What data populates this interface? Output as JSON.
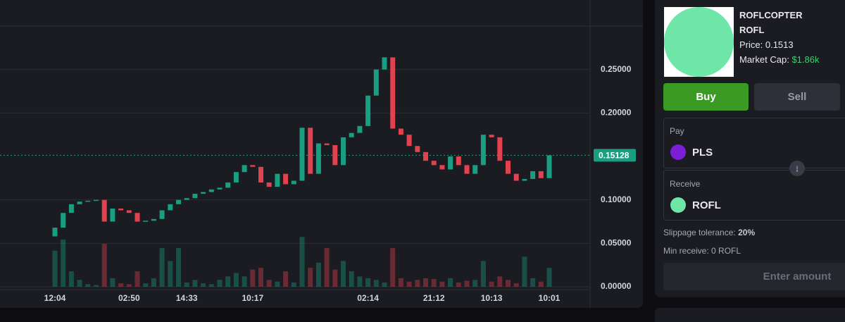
{
  "token": {
    "name": "ROFLCOPTER",
    "symbol": "ROFL",
    "price_label": "Price:",
    "price": "0.1513",
    "market_cap_label": "Market Cap:",
    "market_cap": "$1.86k"
  },
  "actions": {
    "buy": "Buy",
    "sell": "Sell"
  },
  "pay": {
    "label": "Pay",
    "token": "PLS"
  },
  "receive": {
    "label": "Receive",
    "token": "ROFL"
  },
  "slippage": {
    "label": "Slippage tolerance:",
    "value": "20%"
  },
  "min_receive": "Min receive: 0 ROFL",
  "submit": "Enter amount",
  "chart_data": {
    "type": "candlestick",
    "categories": [
      "12:04",
      null,
      null,
      null,
      null,
      null,
      null,
      null,
      null,
      "02:50",
      null,
      null,
      null,
      null,
      null,
      null,
      "14:33",
      null,
      null,
      null,
      null,
      null,
      null,
      null,
      "10:17",
      null,
      null,
      null,
      null,
      null,
      null,
      null,
      null,
      null,
      null,
      null,
      null,
      null,
      "02:14",
      null,
      null,
      null,
      null,
      null,
      null,
      null,
      "21:12",
      null,
      null,
      null,
      null,
      null,
      null,
      "10:13",
      null,
      null,
      null,
      null,
      null,
      null,
      "10:01"
    ],
    "open": [
      0.058,
      0.068,
      0.085,
      0.095,
      0.098,
      0.099,
      0.1,
      0.075,
      0.09,
      0.088,
      0.085,
      0.075,
      0.076,
      0.078,
      0.088,
      0.095,
      0.1,
      0.102,
      0.107,
      0.109,
      0.112,
      0.114,
      0.12,
      0.132,
      0.14,
      0.138,
      0.12,
      0.115,
      0.13,
      0.118,
      0.122,
      0.183,
      0.13,
      0.165,
      0.163,
      0.14,
      0.172,
      0.177,
      0.185,
      0.22,
      0.25,
      0.264,
      0.182,
      0.175,
      0.162,
      0.155,
      0.145,
      0.14,
      0.135,
      0.15,
      0.14,
      0.13,
      0.14,
      0.175,
      0.172,
      0.145,
      0.13,
      0.122,
      0.124,
      0.133,
      0.125
    ],
    "close": [
      0.068,
      0.085,
      0.095,
      0.098,
      0.099,
      0.1,
      0.075,
      0.09,
      0.088,
      0.085,
      0.075,
      0.076,
      0.078,
      0.088,
      0.095,
      0.1,
      0.102,
      0.107,
      0.109,
      0.112,
      0.114,
      0.12,
      0.132,
      0.14,
      0.138,
      0.12,
      0.115,
      0.13,
      0.118,
      0.122,
      0.183,
      0.13,
      0.165,
      0.163,
      0.14,
      0.172,
      0.177,
      0.185,
      0.22,
      0.25,
      0.264,
      0.182,
      0.175,
      0.162,
      0.155,
      0.145,
      0.14,
      0.135,
      0.15,
      0.14,
      0.13,
      0.14,
      0.175,
      0.172,
      0.145,
      0.13,
      0.122,
      0.124,
      0.133,
      0.125,
      0.15128
    ],
    "volume": [
      42,
      55,
      18,
      8,
      3,
      2,
      50,
      10,
      4,
      3,
      18,
      4,
      10,
      45,
      30,
      45,
      5,
      8,
      4,
      3,
      8,
      12,
      16,
      12,
      20,
      22,
      8,
      6,
      18,
      5,
      58,
      22,
      28,
      45,
      20,
      30,
      18,
      12,
      10,
      8,
      5,
      45,
      10,
      6,
      8,
      10,
      9,
      6,
      10,
      5,
      7,
      8,
      30,
      6,
      12,
      8,
      4,
      35,
      10,
      6,
      22
    ],
    "up_color": "#1a9e81",
    "down_color": "#e0424f",
    "ylim": [
      0,
      0.3
    ],
    "yticks": [
      {
        "value": 0,
        "label": "0.00000"
      },
      {
        "value": 0.05,
        "label": "0.05000"
      },
      {
        "value": 0.1,
        "label": "0.10000"
      },
      {
        "value": 0.15128,
        "label": "0.15128"
      },
      {
        "value": 0.2,
        "label": "0.20000"
      },
      {
        "value": 0.25,
        "label": "0.25000"
      }
    ],
    "last_price_tick": 3,
    "y2lim": [
      0,
      100
    ],
    "grid": true
  }
}
